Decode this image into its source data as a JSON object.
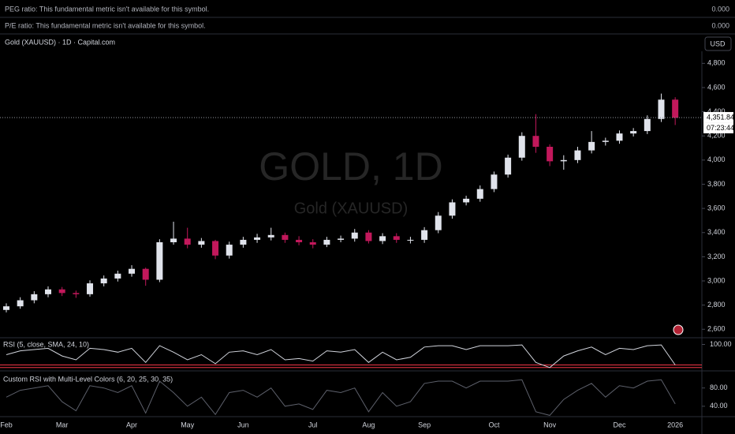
{
  "header": {
    "peg_label": "PEG ratio: This fundamental metric isn't available for this symbol.",
    "peg_value": "0.000",
    "pe_label": "P/E ratio: This fundamental metric isn't available for this symbol.",
    "pe_value": "0.000"
  },
  "chart_data": [
    {
      "type": "candlestick",
      "title": "Gold (XAUUSD) · 1D · Capital.com",
      "watermark": "GOLD, 1D",
      "watermark_sub": "Gold (XAUUSD)",
      "currency": "USD",
      "categories": [
        "Feb",
        null,
        null,
        null,
        "Mar",
        null,
        null,
        null,
        null,
        "Apr",
        null,
        null,
        null,
        "May",
        null,
        null,
        null,
        "Jun",
        null,
        null,
        null,
        null,
        "Jul",
        null,
        null,
        null,
        "Aug",
        null,
        null,
        null,
        "Sep",
        null,
        null,
        null,
        null,
        "Oct",
        null,
        null,
        null,
        "Nov",
        null,
        null,
        null,
        null,
        "Dec",
        null,
        null,
        null,
        "2026"
      ],
      "open": [
        2760,
        2790,
        2840,
        2890,
        2930,
        2900,
        2890,
        2980,
        3020,
        3060,
        3100,
        3010,
        3320,
        3350,
        3300,
        3330,
        3210,
        3300,
        3340,
        3360,
        3380,
        3340,
        3320,
        3300,
        3340,
        3350,
        3400,
        3330,
        3370,
        3340,
        3340,
        3420,
        3540,
        3650,
        3680,
        3760,
        3880,
        4020,
        4200,
        4110,
        3990,
        4000,
        4080,
        4150,
        4160,
        4220,
        4240,
        4340,
        4500
      ],
      "high": [
        2815,
        2865,
        2915,
        2955,
        2950,
        2920,
        3005,
        3045,
        3085,
        3130,
        3110,
        3345,
        3490,
        3440,
        3355,
        3340,
        3325,
        3365,
        3390,
        3440,
        3400,
        3370,
        3345,
        3365,
        3375,
        3430,
        3420,
        3395,
        3395,
        3365,
        3445,
        3570,
        3675,
        3705,
        3790,
        3905,
        4045,
        4230,
        4380,
        4130,
        4040,
        4110,
        4240,
        4185,
        4245,
        4265,
        4370,
        4550,
        4520
      ],
      "low": [
        2740,
        2770,
        2815,
        2865,
        2875,
        2860,
        2870,
        2955,
        2995,
        3035,
        2960,
        2990,
        3300,
        3270,
        3275,
        3180,
        3185,
        3275,
        3315,
        3335,
        3315,
        3295,
        3270,
        3280,
        3320,
        3325,
        3310,
        3305,
        3315,
        3310,
        3315,
        3395,
        3515,
        3625,
        3655,
        3735,
        3855,
        3995,
        4060,
        3950,
        3920,
        3975,
        4055,
        4120,
        4135,
        4195,
        4215,
        4315,
        4290
      ],
      "close": [
        2790,
        2840,
        2890,
        2930,
        2900,
        2890,
        2980,
        3020,
        3060,
        3100,
        3010,
        3320,
        3350,
        3300,
        3330,
        3210,
        3300,
        3340,
        3360,
        3380,
        3340,
        3320,
        3300,
        3340,
        3350,
        3400,
        3330,
        3370,
        3340,
        3340,
        3420,
        3540,
        3650,
        3680,
        3760,
        3880,
        4020,
        4200,
        4110,
        3990,
        4000,
        4080,
        4150,
        4160,
        4220,
        4240,
        4340,
        4500,
        4350
      ],
      "up_color": "#e0e3eb",
      "down_color": "#c2185b",
      "ylim": [
        2530,
        4900
      ],
      "yticks": [
        {
          "value": 2600,
          "label": "2,600"
        },
        {
          "value": 2800,
          "label": "2,800"
        },
        {
          "value": 3000,
          "label": "3,000"
        },
        {
          "value": 3200,
          "label": "3,200"
        },
        {
          "value": 3400,
          "label": "3,400"
        },
        {
          "value": 3600,
          "label": "3,600"
        },
        {
          "value": 3800,
          "label": "3,800"
        },
        {
          "value": 4000,
          "label": "4,000"
        },
        {
          "value": 4200,
          "label": "4,200"
        },
        {
          "value": 4400,
          "label": "4,400"
        },
        {
          "value": 4600,
          "label": "4,600"
        },
        {
          "value": 4800,
          "label": "4,800"
        }
      ],
      "last_price": {
        "value": 4351.84,
        "label": "4,351.84"
      },
      "countdown": "07:23:44"
    },
    {
      "type": "line",
      "title": "RSI (5, close, SMA, 24, 10)",
      "color": "#d1d4dc",
      "values": [
        60,
        75,
        80,
        85,
        55,
        40,
        85,
        80,
        70,
        85,
        30,
        95,
        70,
        40,
        60,
        25,
        70,
        75,
        60,
        80,
        40,
        45,
        35,
        75,
        70,
        80,
        30,
        70,
        40,
        50,
        90,
        95,
        95,
        80,
        95,
        95,
        95,
        98,
        30,
        10,
        55,
        75,
        90,
        60,
        85,
        80,
        95,
        98,
        20
      ],
      "ylim": [
        0,
        120
      ],
      "yticks": [
        {
          "value": 100,
          "label": "100.00"
        }
      ],
      "bands": [
        10,
        20
      ],
      "band_color": "#f23645"
    },
    {
      "type": "line",
      "title": "Custom RSI with Multi-Level Colors (6, 20, 25, 30, 35)",
      "color": "#5d606b",
      "values": [
        60,
        75,
        80,
        85,
        50,
        30,
        85,
        80,
        70,
        85,
        25,
        95,
        70,
        40,
        60,
        22,
        70,
        75,
        60,
        80,
        40,
        45,
        33,
        75,
        70,
        80,
        28,
        70,
        40,
        50,
        90,
        95,
        95,
        80,
        95,
        95,
        95,
        98,
        28,
        20,
        55,
        75,
        90,
        60,
        85,
        80,
        95,
        98,
        45
      ],
      "ylim": [
        19,
        114
      ],
      "yticks": [
        {
          "value": 40,
          "label": "40.00"
        },
        {
          "value": 80,
          "label": "80.00"
        }
      ]
    }
  ]
}
